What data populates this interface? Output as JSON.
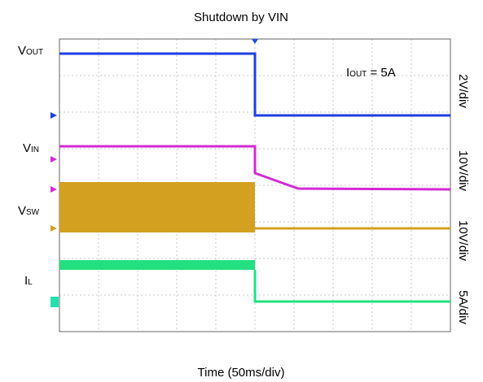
{
  "title": "Shutdown by VIN",
  "labels": [
    {
      "main": "V",
      "sub": "OUT"
    },
    {
      "main": "V",
      "sub": "IN"
    },
    {
      "main": "V",
      "sub": "SW"
    },
    {
      "main": "I",
      "sub": "L"
    }
  ],
  "annotation": {
    "main": "I",
    "sub": "OUT",
    "rest": " = 5A"
  },
  "scales": [
    "2V/div",
    "10V/div",
    "10V/div",
    "5A/div"
  ],
  "x_label": "Time (50ms/div)"
}
